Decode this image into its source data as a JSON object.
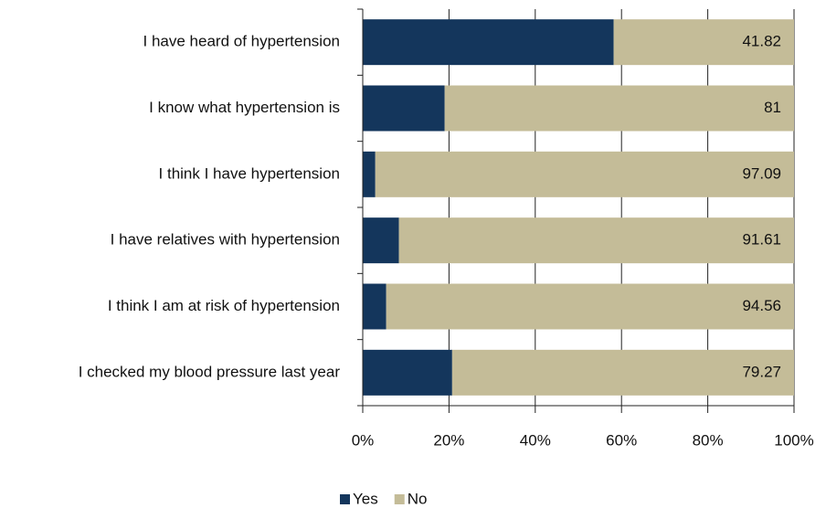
{
  "chart_data": {
    "type": "stacked-bar-horizontal",
    "categories": [
      "I have heard of hypertension",
      "I know what hypertension is",
      "I think I have hypertension",
      "I have relatives with hypertension",
      "I think I am at risk of hypertension",
      "I checked my blood pressure last year"
    ],
    "series": [
      {
        "name": "Yes",
        "color": "#14365c",
        "values": [
          58.18,
          19,
          2.91,
          8.39,
          5.44,
          20.73
        ]
      },
      {
        "name": "No",
        "color": "#c4bc98",
        "values": [
          41.82,
          81,
          97.09,
          91.61,
          94.56,
          79.27
        ],
        "show_labels": true
      }
    ],
    "xlim": [
      0,
      100
    ],
    "xticks": [
      {
        "value": 0,
        "label": "0%"
      },
      {
        "value": 20,
        "label": "20%"
      },
      {
        "value": 40,
        "label": "40%"
      },
      {
        "value": 60,
        "label": "60%"
      },
      {
        "value": 80,
        "label": "80%"
      },
      {
        "value": 100,
        "label": "100%"
      }
    ],
    "grid": true,
    "legend": "bottom"
  }
}
